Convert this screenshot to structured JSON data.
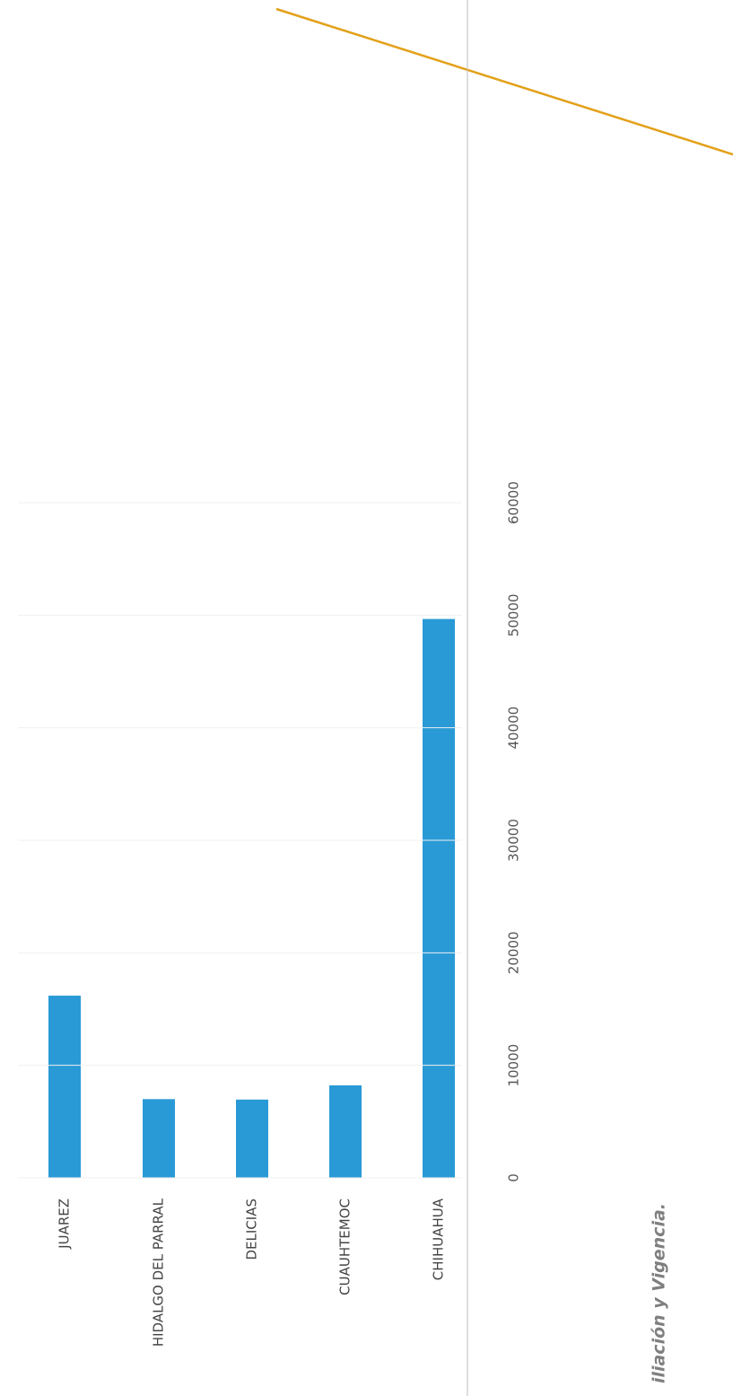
{
  "chart_data": {
    "type": "bar",
    "categories": [
      "JUAREZ",
      "HIDALGO DEL PARRAL",
      "DELICIAS",
      "CUAUHTEMOC",
      "CHIHUAHUA"
    ],
    "values": [
      16192,
      6997,
      6957,
      8220,
      49670
    ],
    "color": "#2a9ad6",
    "ylim": [
      0,
      60000
    ],
    "yticks": [
      0,
      10000,
      20000,
      30000,
      40000,
      50000,
      60000
    ],
    "grid": true,
    "caption": "iliación y Vigencia."
  }
}
